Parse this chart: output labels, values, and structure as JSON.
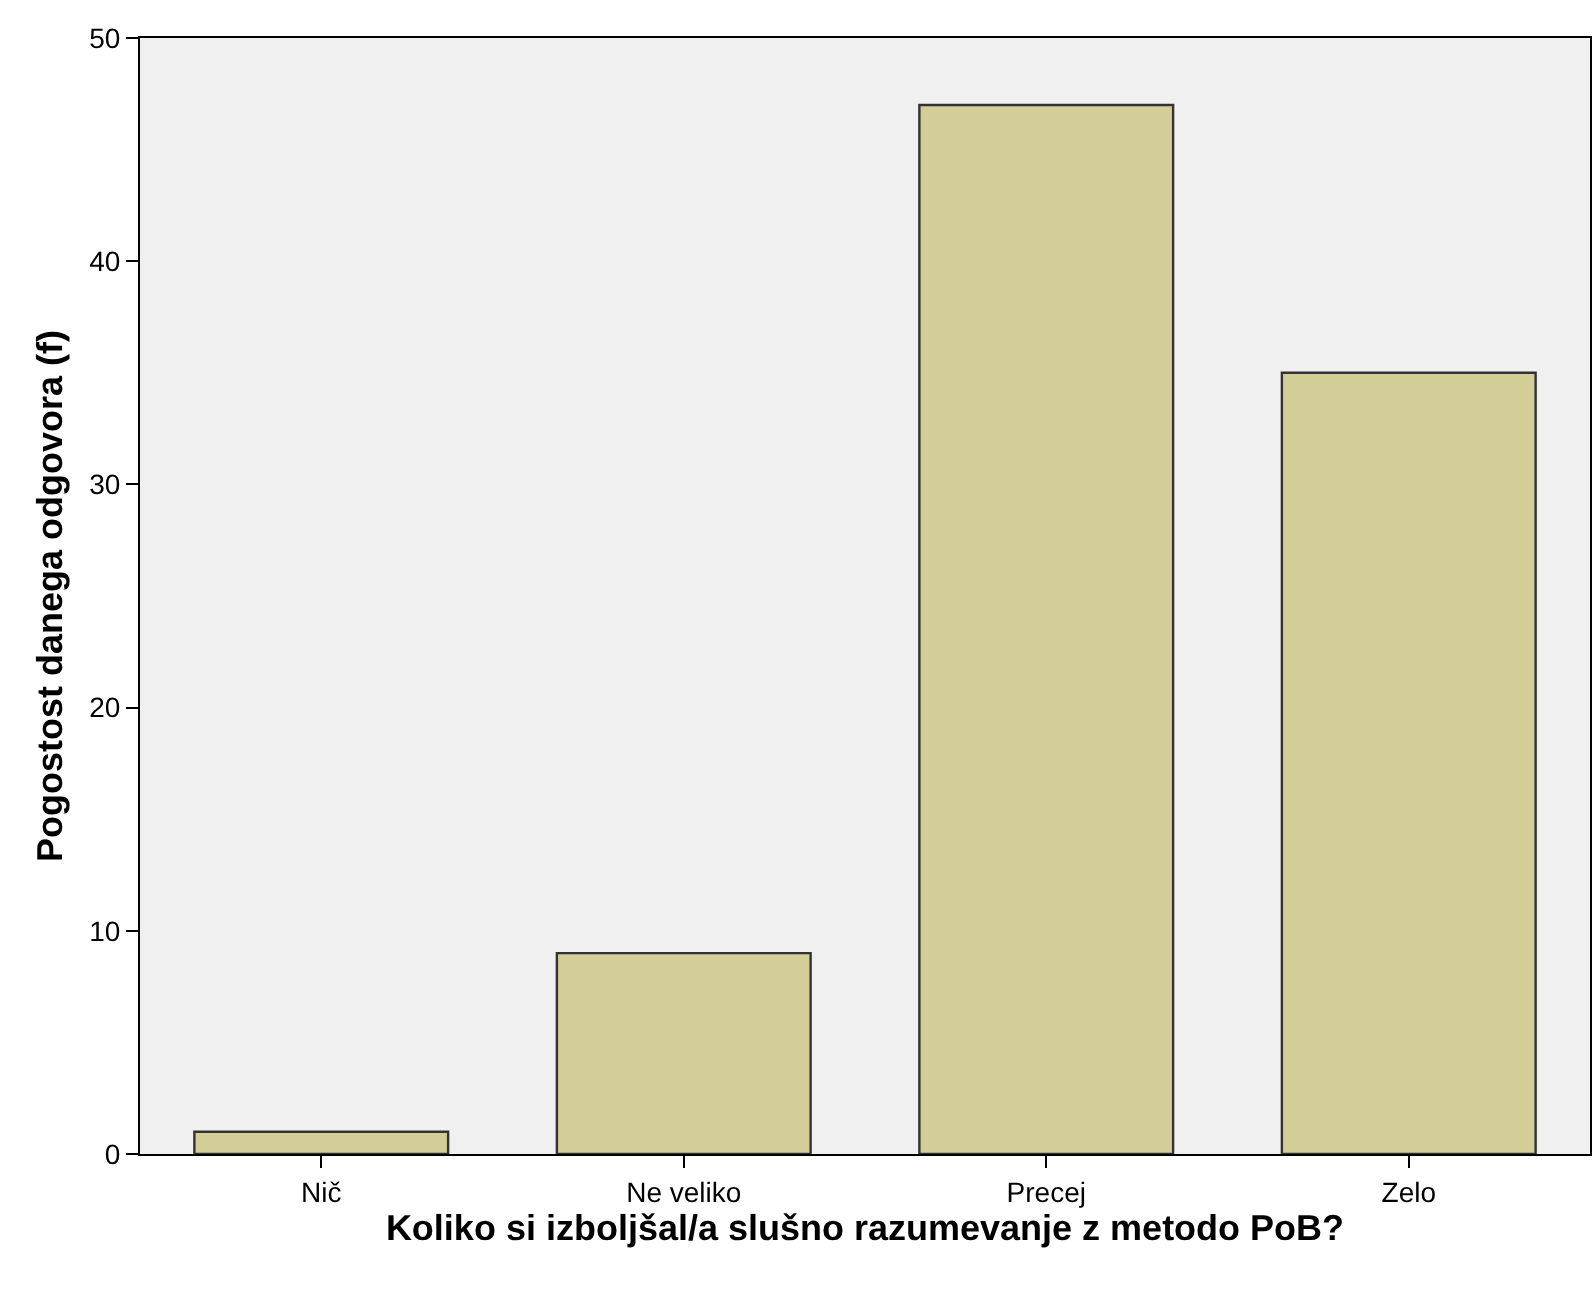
{
  "chart_data": {
    "type": "bar",
    "xlabel": "Koliko si izboljšal/a slušno razumevanje z metodo PoB?",
    "ylabel": "Pogostost danega odgovora (f)",
    "categories": [
      "Nič",
      "Ne veliko",
      "Precej",
      "Zelo"
    ],
    "values": [
      1,
      9,
      47,
      35
    ],
    "color": "#d3ce97",
    "ylim": [
      0,
      50
    ],
    "yticks": [
      0,
      10,
      20,
      30,
      40,
      50
    ],
    "grid": false,
    "legend": false
  }
}
